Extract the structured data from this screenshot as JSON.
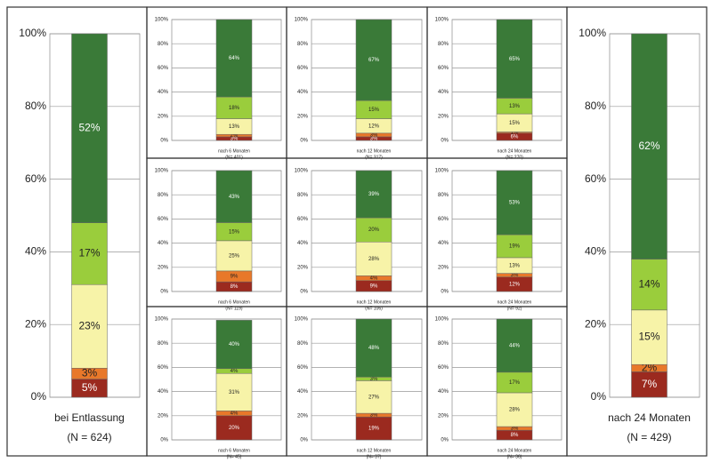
{
  "chart_data": [
    {
      "type": "stacked_bar",
      "categories": [
        "bei Entlassung"
      ],
      "note": "(N = 624)",
      "ylim": [
        0,
        100
      ],
      "yticks": [
        {
          "value": 0,
          "label": "0%"
        },
        {
          "value": 20,
          "label": "20%"
        },
        {
          "value": 40,
          "label": "40%"
        },
        {
          "value": 60,
          "label": "60%"
        },
        {
          "value": 80,
          "label": "80%"
        },
        {
          "value": 100,
          "label": "100%"
        }
      ],
      "grid": true,
      "series": [
        {
          "color": "#9b2a1f",
          "values": [
            5
          ],
          "value_labels": [
            "5%"
          ]
        },
        {
          "color": "#e8782a",
          "values": [
            3
          ],
          "value_labels": [
            "3%"
          ]
        },
        {
          "color": "#f7f3a8",
          "values": [
            23
          ],
          "value_labels": [
            "23%"
          ]
        },
        {
          "color": "#9acd3c",
          "values": [
            17
          ],
          "value_labels": [
            "17%"
          ]
        },
        {
          "color": "#3a7a38",
          "values": [
            52
          ],
          "value_labels": [
            "52%"
          ]
        }
      ]
    },
    {
      "type": "stacked_bar",
      "categories": [
        "nach 6 Monaten"
      ],
      "note": "(N= 401)",
      "ylim": [
        0,
        100
      ],
      "yticks": [
        {
          "value": 0,
          "label": "0%"
        },
        {
          "value": 20,
          "label": "20%"
        },
        {
          "value": 40,
          "label": "40%"
        },
        {
          "value": 60,
          "label": "60%"
        },
        {
          "value": 80,
          "label": "80%"
        },
        {
          "value": 100,
          "label": "100%"
        }
      ],
      "grid": true,
      "series": [
        {
          "color": "#9b2a1f",
          "values": [
            3
          ],
          "value_labels": [
            "3%"
          ]
        },
        {
          "color": "#e8782a",
          "values": [
            2
          ],
          "value_labels": [
            "2%"
          ]
        },
        {
          "color": "#f7f3a8",
          "values": [
            13
          ],
          "value_labels": [
            "13%"
          ]
        },
        {
          "color": "#9acd3c",
          "values": [
            18
          ],
          "value_labels": [
            "18%"
          ]
        },
        {
          "color": "#3a7a38",
          "values": [
            64
          ],
          "value_labels": [
            "64%"
          ]
        }
      ]
    },
    {
      "type": "stacked_bar",
      "categories": [
        "nach 12 Monaten"
      ],
      "note": "(N= 317)",
      "ylim": [
        0,
        100
      ],
      "yticks": [
        {
          "value": 0,
          "label": "0%"
        },
        {
          "value": 20,
          "label": "20%"
        },
        {
          "value": 40,
          "label": "40%"
        },
        {
          "value": 60,
          "label": "60%"
        },
        {
          "value": 80,
          "label": "80%"
        },
        {
          "value": 100,
          "label": "100%"
        }
      ],
      "grid": true,
      "series": [
        {
          "color": "#9b2a1f",
          "values": [
            3
          ],
          "value_labels": [
            "3%"
          ]
        },
        {
          "color": "#e8782a",
          "values": [
            3
          ],
          "value_labels": [
            "3%"
          ]
        },
        {
          "color": "#f7f3a8",
          "values": [
            12
          ],
          "value_labels": [
            "12%"
          ]
        },
        {
          "color": "#9acd3c",
          "values": [
            15
          ],
          "value_labels": [
            "15%"
          ]
        },
        {
          "color": "#3a7a38",
          "values": [
            67
          ],
          "value_labels": [
            "67%"
          ]
        }
      ]
    },
    {
      "type": "stacked_bar",
      "categories": [
        "nach 24 Monaten"
      ],
      "note": "(N= 270)",
      "ylim": [
        0,
        100
      ],
      "yticks": [
        {
          "value": 0,
          "label": "0%"
        },
        {
          "value": 20,
          "label": "20%"
        },
        {
          "value": 40,
          "label": "40%"
        },
        {
          "value": 60,
          "label": "60%"
        },
        {
          "value": 80,
          "label": "80%"
        },
        {
          "value": 100,
          "label": "100%"
        }
      ],
      "grid": true,
      "series": [
        {
          "color": "#9b2a1f",
          "values": [
            6
          ],
          "value_labels": [
            "6%"
          ]
        },
        {
          "color": "#e8782a",
          "values": [
            1
          ],
          "value_labels": [
            "1%"
          ]
        },
        {
          "color": "#f7f3a8",
          "values": [
            15
          ],
          "value_labels": [
            "15%"
          ]
        },
        {
          "color": "#9acd3c",
          "values": [
            13
          ],
          "value_labels": [
            "13%"
          ]
        },
        {
          "color": "#3a7a38",
          "values": [
            65
          ],
          "value_labels": [
            "65%"
          ]
        }
      ]
    },
    {
      "type": "stacked_bar",
      "categories": [
        "nach 6 Monaten"
      ],
      "note": "(N= 119)",
      "ylim": [
        0,
        100
      ],
      "yticks": [
        {
          "value": 0,
          "label": "0%"
        },
        {
          "value": 20,
          "label": "20%"
        },
        {
          "value": 40,
          "label": "40%"
        },
        {
          "value": 60,
          "label": "60%"
        },
        {
          "value": 80,
          "label": "80%"
        },
        {
          "value": 100,
          "label": "100%"
        }
      ],
      "grid": true,
      "series": [
        {
          "color": "#9b2a1f",
          "values": [
            8
          ],
          "value_labels": [
            "8%"
          ]
        },
        {
          "color": "#e8782a",
          "values": [
            9
          ],
          "value_labels": [
            "9%"
          ]
        },
        {
          "color": "#f7f3a8",
          "values": [
            25
          ],
          "value_labels": [
            "25%"
          ]
        },
        {
          "color": "#9acd3c",
          "values": [
            15
          ],
          "value_labels": [
            "15%"
          ]
        },
        {
          "color": "#3a7a38",
          "values": [
            43
          ],
          "value_labels": [
            "43%"
          ]
        }
      ]
    },
    {
      "type": "stacked_bar",
      "categories": [
        "nach 12 Monaten"
      ],
      "note": "(N= 106)",
      "ylim": [
        0,
        100
      ],
      "yticks": [
        {
          "value": 0,
          "label": "0%"
        },
        {
          "value": 20,
          "label": "20%"
        },
        {
          "value": 40,
          "label": "40%"
        },
        {
          "value": 60,
          "label": "60%"
        },
        {
          "value": 80,
          "label": "80%"
        },
        {
          "value": 100,
          "label": "100%"
        }
      ],
      "grid": true,
      "series": [
        {
          "color": "#9b2a1f",
          "values": [
            9
          ],
          "value_labels": [
            "9%"
          ]
        },
        {
          "color": "#e8782a",
          "values": [
            4
          ],
          "value_labels": [
            "4%"
          ]
        },
        {
          "color": "#f7f3a8",
          "values": [
            28
          ],
          "value_labels": [
            "28%"
          ]
        },
        {
          "color": "#9acd3c",
          "values": [
            20
          ],
          "value_labels": [
            "20%"
          ]
        },
        {
          "color": "#3a7a38",
          "values": [
            39
          ],
          "value_labels": [
            "39%"
          ]
        }
      ]
    },
    {
      "type": "stacked_bar",
      "categories": [
        "nach 24 Monaten"
      ],
      "note": "(N= 92)",
      "ylim": [
        0,
        100
      ],
      "yticks": [
        {
          "value": 0,
          "label": "0%"
        },
        {
          "value": 20,
          "label": "20%"
        },
        {
          "value": 40,
          "label": "40%"
        },
        {
          "value": 60,
          "label": "60%"
        },
        {
          "value": 80,
          "label": "80%"
        },
        {
          "value": 100,
          "label": "100%"
        }
      ],
      "grid": true,
      "series": [
        {
          "color": "#9b2a1f",
          "values": [
            12
          ],
          "value_labels": [
            "12%"
          ]
        },
        {
          "color": "#e8782a",
          "values": [
            3
          ],
          "value_labels": [
            "3%"
          ]
        },
        {
          "color": "#f7f3a8",
          "values": [
            13
          ],
          "value_labels": [
            "13%"
          ]
        },
        {
          "color": "#9acd3c",
          "values": [
            19
          ],
          "value_labels": [
            "19%"
          ]
        },
        {
          "color": "#3a7a38",
          "values": [
            53
          ],
          "value_labels": [
            "53%"
          ]
        }
      ]
    },
    {
      "type": "stacked_bar",
      "categories": [
        "nach 6 Monaten"
      ],
      "note": "(N= 45)",
      "ylim": [
        0,
        100
      ],
      "yticks": [
        {
          "value": 0,
          "label": "0%"
        },
        {
          "value": 20,
          "label": "20%"
        },
        {
          "value": 40,
          "label": "40%"
        },
        {
          "value": 60,
          "label": "60%"
        },
        {
          "value": 80,
          "label": "80%"
        },
        {
          "value": 100,
          "label": "100%"
        }
      ],
      "grid": true,
      "series": [
        {
          "color": "#9b2a1f",
          "values": [
            20
          ],
          "value_labels": [
            "20%"
          ]
        },
        {
          "color": "#e8782a",
          "values": [
            4
          ],
          "value_labels": [
            "4%"
          ]
        },
        {
          "color": "#f7f3a8",
          "values": [
            31
          ],
          "value_labels": [
            "31%"
          ]
        },
        {
          "color": "#9acd3c",
          "values": [
            4
          ],
          "value_labels": [
            "4%"
          ]
        },
        {
          "color": "#3a7a38",
          "values": [
            40
          ],
          "value_labels": [
            "40%"
          ]
        }
      ]
    },
    {
      "type": "stacked_bar",
      "categories": [
        "nach 12 Monaten"
      ],
      "note": "(N= 37)",
      "ylim": [
        0,
        100
      ],
      "yticks": [
        {
          "value": 0,
          "label": "0%"
        },
        {
          "value": 20,
          "label": "20%"
        },
        {
          "value": 40,
          "label": "40%"
        },
        {
          "value": 60,
          "label": "60%"
        },
        {
          "value": 80,
          "label": "80%"
        },
        {
          "value": 100,
          "label": "100%"
        }
      ],
      "grid": true,
      "series": [
        {
          "color": "#9b2a1f",
          "values": [
            19
          ],
          "value_labels": [
            "19%"
          ]
        },
        {
          "color": "#e8782a",
          "values": [
            3
          ],
          "value_labels": [
            "3%"
          ]
        },
        {
          "color": "#f7f3a8",
          "values": [
            27
          ],
          "value_labels": [
            "27%"
          ]
        },
        {
          "color": "#9acd3c",
          "values": [
            3
          ],
          "value_labels": [
            "3%"
          ]
        },
        {
          "color": "#3a7a38",
          "values": [
            48
          ],
          "value_labels": [
            "48%"
          ]
        }
      ]
    },
    {
      "type": "stacked_bar",
      "categories": [
        "nach 24 Monaten"
      ],
      "note": "(N= 36)",
      "ylim": [
        0,
        100
      ],
      "yticks": [
        {
          "value": 0,
          "label": "0%"
        },
        {
          "value": 20,
          "label": "20%"
        },
        {
          "value": 40,
          "label": "40%"
        },
        {
          "value": 60,
          "label": "60%"
        },
        {
          "value": 80,
          "label": "80%"
        },
        {
          "value": 100,
          "label": "100%"
        }
      ],
      "grid": true,
      "series": [
        {
          "color": "#9b2a1f",
          "values": [
            8
          ],
          "value_labels": [
            "8%"
          ]
        },
        {
          "color": "#e8782a",
          "values": [
            3
          ],
          "value_labels": [
            "3%"
          ]
        },
        {
          "color": "#f7f3a8",
          "values": [
            28
          ],
          "value_labels": [
            "28%"
          ]
        },
        {
          "color": "#9acd3c",
          "values": [
            17
          ],
          "value_labels": [
            "17%"
          ]
        },
        {
          "color": "#3a7a38",
          "values": [
            44
          ],
          "value_labels": [
            "44%"
          ]
        }
      ]
    },
    {
      "type": "stacked_bar",
      "categories": [
        "nach 24 Monaten"
      ],
      "note": "(N = 429)",
      "ylim": [
        0,
        100
      ],
      "yticks": [
        {
          "value": 0,
          "label": "0%"
        },
        {
          "value": 20,
          "label": "20%"
        },
        {
          "value": 40,
          "label": "40%"
        },
        {
          "value": 60,
          "label": "60%"
        },
        {
          "value": 80,
          "label": "80%"
        },
        {
          "value": 100,
          "label": "100%"
        }
      ],
      "grid": true,
      "series": [
        {
          "color": "#9b2a1f",
          "values": [
            7
          ],
          "value_labels": [
            "7%"
          ]
        },
        {
          "color": "#e8782a",
          "values": [
            2
          ],
          "value_labels": [
            "2%"
          ]
        },
        {
          "color": "#f7f3a8",
          "values": [
            15
          ],
          "value_labels": [
            "15%"
          ]
        },
        {
          "color": "#9acd3c",
          "values": [
            14
          ],
          "value_labels": [
            "14%"
          ]
        },
        {
          "color": "#3a7a38",
          "values": [
            62
          ],
          "value_labels": [
            "62%"
          ]
        }
      ]
    }
  ]
}
